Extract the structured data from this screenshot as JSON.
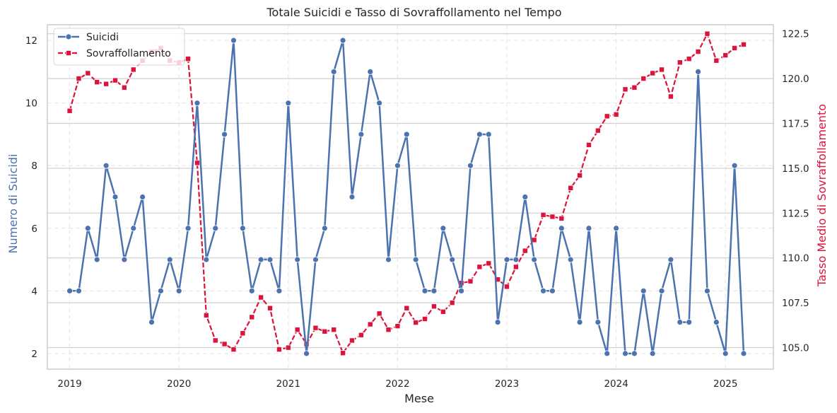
{
  "chart_data": {
    "type": "line",
    "title": "Totale Suicidi e Tasso di Sovraffollamento nel Tempo",
    "xlabel": "Mese",
    "ylabel": "Numero di Suicidi",
    "ylabel_right": "Tasso Medio di Sovraffollamento",
    "x_tick_labels": [
      "2019",
      "2020",
      "2021",
      "2022",
      "2023",
      "2024",
      "2025"
    ],
    "xlim": [
      "2018-10",
      "2025-06"
    ],
    "ylim": [
      1.5,
      12.5
    ],
    "ylim_right": [
      103.8,
      123.0
    ],
    "y_ticks": [
      2,
      4,
      6,
      8,
      10,
      12
    ],
    "y_ticks_right": [
      105.0,
      107.5,
      110.0,
      112.5,
      115.0,
      117.5,
      120.0,
      122.5
    ],
    "y_tick_labels_right": [
      "105.0",
      "107.5",
      "110.0",
      "112.5",
      "115.0",
      "117.5",
      "120.0",
      "122.5"
    ],
    "grid": true,
    "legend_position": "top-left",
    "months": [
      "2019-01",
      "2019-02",
      "2019-03",
      "2019-04",
      "2019-05",
      "2019-06",
      "2019-07",
      "2019-08",
      "2019-09",
      "2019-10",
      "2019-11",
      "2019-12",
      "2020-01",
      "2020-02",
      "2020-03",
      "2020-04",
      "2020-05",
      "2020-06",
      "2020-07",
      "2020-08",
      "2020-09",
      "2020-10",
      "2020-11",
      "2020-12",
      "2021-01",
      "2021-02",
      "2021-03",
      "2021-04",
      "2021-05",
      "2021-06",
      "2021-07",
      "2021-08",
      "2021-09",
      "2021-10",
      "2021-11",
      "2021-12",
      "2022-01",
      "2022-02",
      "2022-03",
      "2022-04",
      "2022-05",
      "2022-06",
      "2022-07",
      "2022-08",
      "2022-09",
      "2022-10",
      "2022-11",
      "2022-12",
      "2023-01",
      "2023-02",
      "2023-03",
      "2023-04",
      "2023-05",
      "2023-06",
      "2023-07",
      "2023-08",
      "2023-09",
      "2023-10",
      "2023-11",
      "2023-12",
      "2024-01",
      "2024-02",
      "2024-03",
      "2024-04",
      "2024-05",
      "2024-06",
      "2024-07",
      "2024-08",
      "2024-09",
      "2024-10",
      "2024-11",
      "2024-12",
      "2025-01",
      "2025-02",
      "2025-03"
    ],
    "series": [
      {
        "name": "Suicidi",
        "axis": "left",
        "color": "#4c72b0",
        "marker": "circle",
        "linestyle": "solid",
        "values": [
          4,
          4,
          6,
          5,
          8,
          7,
          5,
          6,
          7,
          3,
          4,
          5,
          4,
          6,
          10,
          5,
          6,
          9,
          12,
          6,
          4,
          5,
          5,
          4,
          10,
          5,
          2,
          5,
          6,
          11,
          12,
          7,
          9,
          11,
          10,
          5,
          8,
          9,
          5,
          4,
          4,
          6,
          5,
          4,
          8,
          9,
          9,
          3,
          5,
          5,
          7,
          5,
          4,
          4,
          6,
          5,
          3,
          6,
          3,
          2,
          6,
          2,
          2,
          4,
          2,
          4,
          5,
          3,
          3,
          11,
          4,
          3,
          2,
          8,
          2
        ]
      },
      {
        "name": "Sovraffollamento",
        "axis": "right",
        "color": "#dc143c",
        "marker": "square",
        "linestyle": "dashed",
        "values": [
          118.2,
          120.0,
          120.3,
          119.8,
          119.7,
          119.9,
          119.5,
          120.5,
          121.0,
          121.5,
          121.7,
          121.0,
          120.9,
          121.1,
          115.3,
          106.8,
          105.4,
          105.2,
          104.9,
          105.8,
          106.7,
          107.8,
          107.2,
          104.9,
          105.0,
          106.0,
          105.2,
          106.1,
          105.9,
          106.0,
          104.7,
          105.4,
          105.7,
          106.3,
          106.9,
          106.0,
          106.2,
          107.2,
          106.4,
          106.6,
          107.3,
          107.0,
          107.5,
          108.6,
          108.7,
          109.5,
          109.7,
          108.8,
          108.4,
          109.5,
          110.4,
          111.0,
          112.4,
          112.3,
          112.2,
          113.9,
          114.6,
          116.3,
          117.1,
          117.9,
          118.0,
          119.4,
          119.5,
          120.0,
          120.3,
          120.5,
          119.0,
          120.9,
          121.1,
          121.5,
          122.5,
          121.0,
          121.3,
          121.7,
          121.9
        ]
      }
    ]
  }
}
